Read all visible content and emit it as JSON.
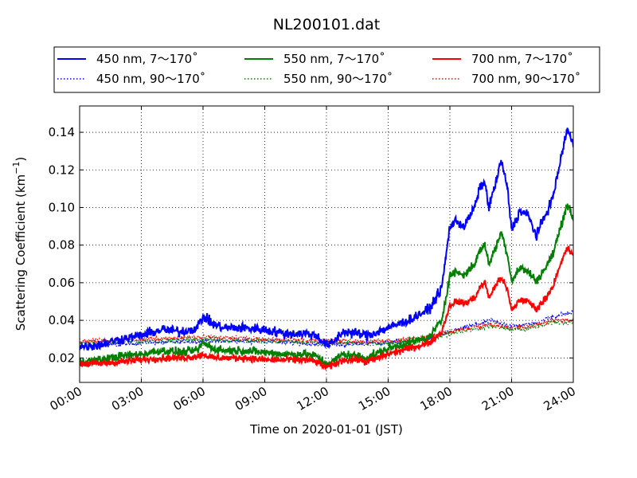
{
  "chart_data": {
    "type": "line",
    "title": "NL200101.dat",
    "xlabel": "Time on 2020-01-01 (JST)",
    "ylabel": "Scattering Coefficient (km",
    "ylabel_sup": "−1",
    "ylabel_close": ")",
    "xlim": [
      0,
      24
    ],
    "ylim": [
      0.007,
      0.154
    ],
    "x_ticks": [
      0,
      3,
      6,
      9,
      12,
      15,
      18,
      21,
      24
    ],
    "x_tick_labels": [
      "00:00",
      "03:00",
      "06:00",
      "09:00",
      "12:00",
      "15:00",
      "18:00",
      "21:00",
      "24:00"
    ],
    "y_ticks": [
      0.02,
      0.04,
      0.06,
      0.08,
      0.1,
      0.12,
      0.14
    ],
    "y_tick_labels": [
      "0.02",
      "0.04",
      "0.06",
      "0.08",
      "0.10",
      "0.12",
      "0.14"
    ],
    "grid": true,
    "legend_position": "top",
    "series": [
      {
        "name": "450 nm, 7～170˚",
        "color": "#0000ff",
        "style": "solid",
        "noise": 0.0013,
        "x": [
          0,
          1,
          2,
          3,
          4,
          5,
          5.7,
          6,
          6.5,
          7,
          8,
          9,
          10,
          11,
          11.5,
          12,
          12.3,
          12.8,
          13.5,
          14,
          15,
          16,
          17,
          17.6,
          18,
          18.3,
          18.7,
          19.2,
          19.5,
          19.7,
          19.9,
          20.2,
          20.5,
          20.8,
          21,
          21.4,
          21.8,
          22.2,
          22.6,
          23,
          23.4,
          23.7,
          24
        ],
        "y": [
          0.026,
          0.027,
          0.03,
          0.032,
          0.035,
          0.034,
          0.036,
          0.042,
          0.038,
          0.036,
          0.036,
          0.035,
          0.033,
          0.033,
          0.032,
          0.027,
          0.028,
          0.034,
          0.033,
          0.032,
          0.036,
          0.04,
          0.046,
          0.057,
          0.09,
          0.093,
          0.09,
          0.1,
          0.112,
          0.113,
          0.1,
          0.112,
          0.125,
          0.11,
          0.088,
          0.098,
          0.096,
          0.085,
          0.095,
          0.105,
          0.126,
          0.142,
          0.133
        ]
      },
      {
        "name": "450 nm, 90～170˚",
        "color": "#0000ff",
        "style": "dotted",
        "noise": 0.0006,
        "x": [
          0,
          3,
          6,
          9,
          12,
          15,
          17,
          18,
          19,
          20,
          21,
          22,
          23,
          24
        ],
        "y": [
          0.026,
          0.028,
          0.029,
          0.029,
          0.027,
          0.028,
          0.03,
          0.034,
          0.037,
          0.04,
          0.037,
          0.038,
          0.042,
          0.044
        ]
      },
      {
        "name": "550 nm, 7～170˚",
        "color": "#008000",
        "style": "solid",
        "noise": 0.0011,
        "x": [
          0,
          1,
          2,
          3,
          4,
          5,
          5.7,
          6,
          6.5,
          7,
          8,
          9,
          10,
          11,
          11.5,
          12,
          12.3,
          12.8,
          13.5,
          14,
          15,
          16,
          17,
          17.6,
          18,
          18.3,
          18.7,
          19.2,
          19.5,
          19.7,
          19.9,
          20.2,
          20.5,
          20.8,
          21,
          21.4,
          21.8,
          22.2,
          22.6,
          23,
          23.4,
          23.7,
          24
        ],
        "y": [
          0.018,
          0.019,
          0.021,
          0.022,
          0.024,
          0.023,
          0.024,
          0.028,
          0.025,
          0.024,
          0.024,
          0.023,
          0.022,
          0.022,
          0.021,
          0.017,
          0.018,
          0.022,
          0.021,
          0.02,
          0.025,
          0.028,
          0.031,
          0.04,
          0.064,
          0.066,
          0.064,
          0.07,
          0.078,
          0.08,
          0.07,
          0.078,
          0.087,
          0.075,
          0.061,
          0.068,
          0.066,
          0.061,
          0.067,
          0.075,
          0.09,
          0.102,
          0.094
        ]
      },
      {
        "name": "550 nm, 90～170˚",
        "color": "#008000",
        "style": "dotted",
        "noise": 0.0006,
        "x": [
          0,
          3,
          6,
          9,
          12,
          15,
          17,
          18,
          19,
          20,
          21,
          22,
          23,
          24
        ],
        "y": [
          0.028,
          0.029,
          0.03,
          0.029,
          0.028,
          0.028,
          0.03,
          0.033,
          0.035,
          0.037,
          0.035,
          0.036,
          0.039,
          0.039
        ]
      },
      {
        "name": "700 nm, 7～170˚",
        "color": "#ff0000",
        "style": "solid",
        "noise": 0.0009,
        "x": [
          0,
          1,
          2,
          3,
          4,
          5,
          5.7,
          6,
          6.5,
          7,
          8,
          9,
          10,
          11,
          11.5,
          12,
          12.3,
          12.8,
          13.5,
          14,
          15,
          16,
          17,
          17.6,
          18,
          18.3,
          18.7,
          19.2,
          19.5,
          19.7,
          19.9,
          20.2,
          20.5,
          20.8,
          21,
          21.4,
          21.8,
          22.2,
          22.6,
          23,
          23.4,
          23.7,
          24
        ],
        "y": [
          0.017,
          0.017,
          0.018,
          0.019,
          0.02,
          0.02,
          0.021,
          0.022,
          0.02,
          0.02,
          0.02,
          0.019,
          0.019,
          0.019,
          0.018,
          0.015,
          0.016,
          0.019,
          0.019,
          0.018,
          0.022,
          0.025,
          0.028,
          0.034,
          0.048,
          0.05,
          0.049,
          0.052,
          0.058,
          0.06,
          0.052,
          0.058,
          0.063,
          0.056,
          0.045,
          0.051,
          0.05,
          0.046,
          0.051,
          0.058,
          0.07,
          0.079,
          0.074
        ]
      },
      {
        "name": "700 nm, 90～170˚",
        "color": "#ff0000",
        "style": "dotted",
        "noise": 0.0006,
        "x": [
          0,
          3,
          6,
          9,
          12,
          15,
          17,
          18,
          19,
          20,
          21,
          22,
          23,
          24
        ],
        "y": [
          0.029,
          0.03,
          0.031,
          0.03,
          0.029,
          0.029,
          0.031,
          0.034,
          0.036,
          0.038,
          0.036,
          0.037,
          0.04,
          0.04
        ]
      }
    ]
  }
}
